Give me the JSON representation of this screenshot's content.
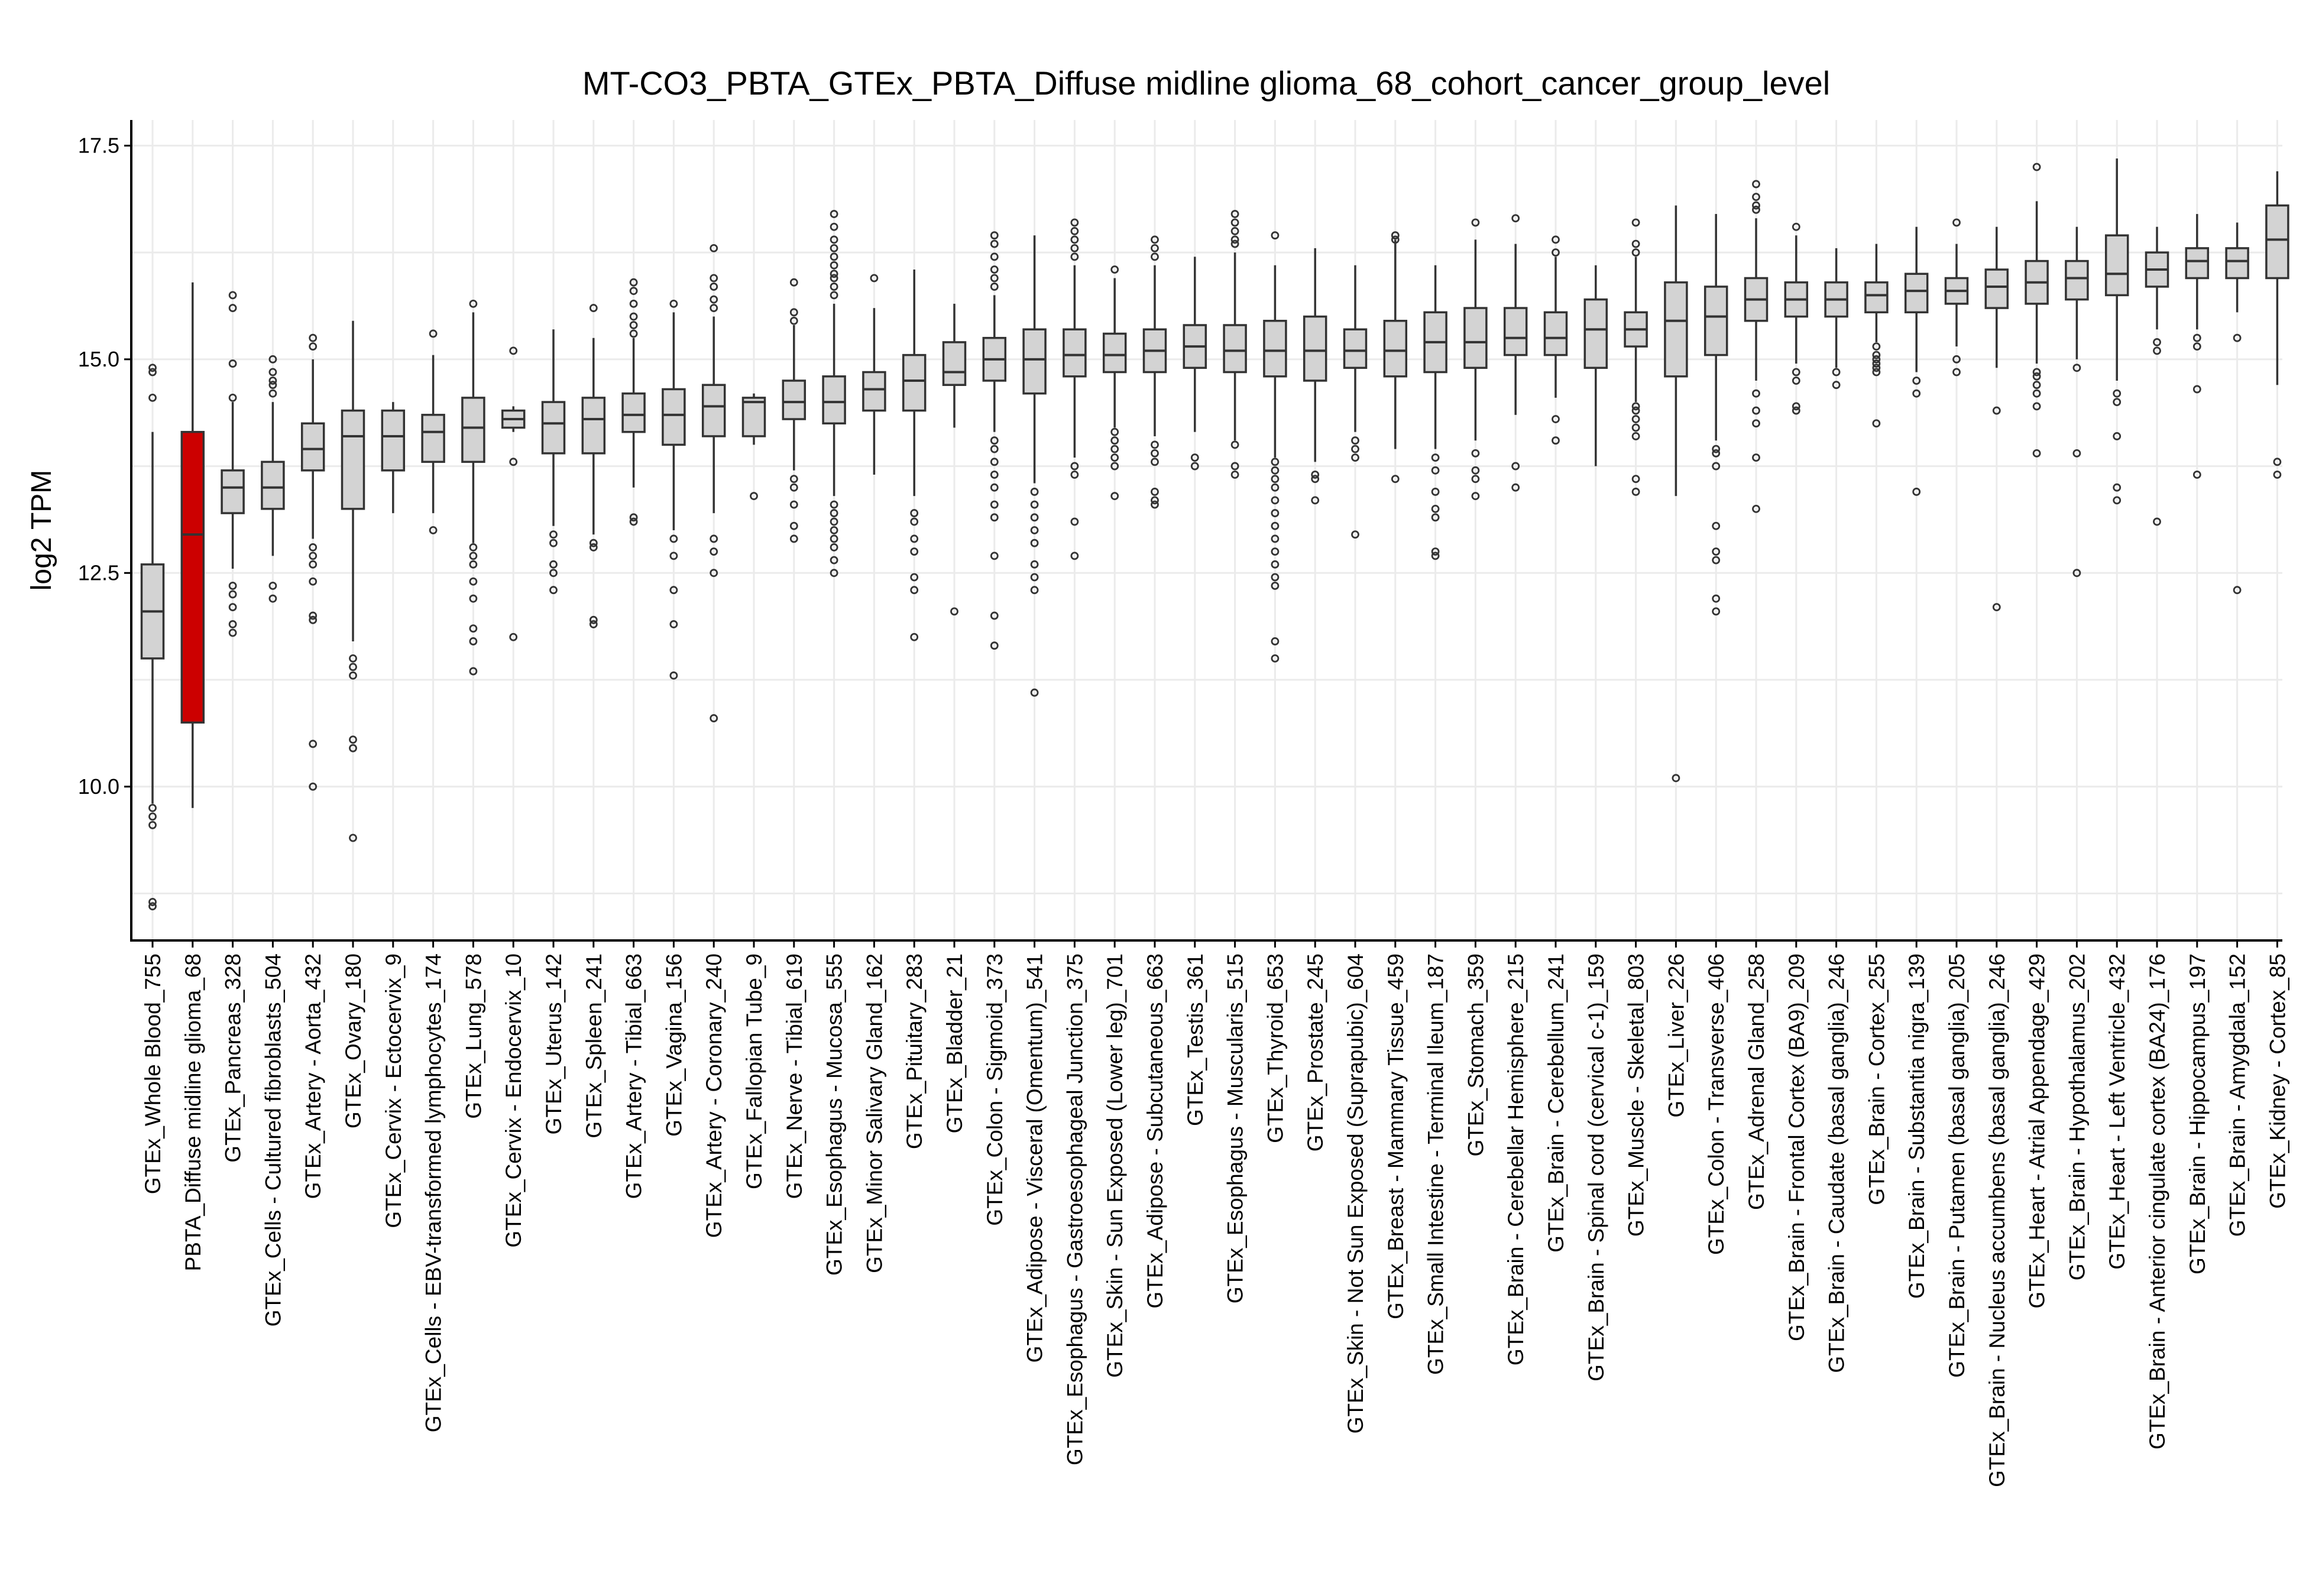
{
  "chart_data": {
    "type": "box",
    "title": "MT-CO3_PBTA_GTEx_PBTA_Diffuse midline glioma_68_cohort_cancer_group_level",
    "xlabel": "",
    "ylabel": "log2 TPM",
    "ylim": [
      8.2,
      17.8
    ],
    "yticks": [
      "10.0",
      "12.5",
      "15.0",
      "17.5"
    ],
    "grid": true,
    "legend": "none",
    "colors": {
      "default_fill": "#d3d3d3",
      "highlight_fill": "#cc0000",
      "line": "#333333"
    },
    "groups": [
      {
        "label": "GTEx_Whole Blood_755",
        "q1": 11.5,
        "median": 12.05,
        "q3": 12.6,
        "whisker_low": 9.8,
        "whisker_high": 14.15,
        "outliers": [
          14.9,
          14.85,
          14.55,
          9.75,
          9.65,
          9.55,
          8.65,
          8.6
        ],
        "highlight": false
      },
      {
        "label": "PBTA_Diffuse midline glioma_68",
        "q1": 10.75,
        "median": 12.95,
        "q3": 14.15,
        "whisker_low": 9.75,
        "whisker_high": 15.9,
        "outliers": [],
        "highlight": true
      },
      {
        "label": "GTEx_Pancreas_328",
        "q1": 13.2,
        "median": 13.5,
        "q3": 13.7,
        "whisker_low": 12.55,
        "whisker_high": 14.5,
        "outliers": [
          15.75,
          15.6,
          14.95,
          14.55,
          12.35,
          12.25,
          12.1,
          11.9,
          11.8
        ],
        "highlight": false
      },
      {
        "label": "GTEx_Cells - Cultured fibroblasts_504",
        "q1": 13.25,
        "median": 13.5,
        "q3": 13.8,
        "whisker_low": 12.7,
        "whisker_high": 14.5,
        "outliers": [
          15.0,
          14.85,
          14.75,
          14.7,
          14.6,
          12.35,
          12.2
        ],
        "highlight": false
      },
      {
        "label": "GTEx_Artery - Aorta_432",
        "q1": 13.7,
        "median": 13.95,
        "q3": 14.25,
        "whisker_low": 12.9,
        "whisker_high": 15.0,
        "outliers": [
          15.25,
          15.15,
          12.8,
          12.7,
          12.6,
          12.4,
          12.0,
          11.95,
          10.5,
          10.0
        ],
        "highlight": false
      },
      {
        "label": "GTEx_Ovary_180",
        "q1": 13.25,
        "median": 14.1,
        "q3": 14.4,
        "whisker_low": 11.7,
        "whisker_high": 15.45,
        "outliers": [
          11.5,
          11.4,
          11.3,
          10.55,
          10.45,
          9.4
        ],
        "highlight": false
      },
      {
        "label": "GTEx_Cervix - Ectocervix_9",
        "q1": 13.7,
        "median": 14.1,
        "q3": 14.4,
        "whisker_low": 13.2,
        "whisker_high": 14.5,
        "outliers": [],
        "highlight": false
      },
      {
        "label": "GTEx_Cells - EBV-transformed lymphocytes_174",
        "q1": 13.8,
        "median": 14.15,
        "q3": 14.35,
        "whisker_low": 13.2,
        "whisker_high": 15.05,
        "outliers": [
          15.3,
          13.0
        ],
        "highlight": false
      },
      {
        "label": "GTEx_Lung_578",
        "q1": 13.8,
        "median": 14.2,
        "q3": 14.55,
        "whisker_low": 12.85,
        "whisker_high": 15.55,
        "outliers": [
          15.65,
          12.8,
          12.7,
          12.6,
          12.4,
          12.2,
          11.85,
          11.7,
          11.35
        ],
        "highlight": false
      },
      {
        "label": "GTEx_Cervix - Endocervix_10",
        "q1": 14.2,
        "median": 14.3,
        "q3": 14.4,
        "whisker_low": 14.15,
        "whisker_high": 14.45,
        "outliers": [
          15.1,
          13.8,
          11.75
        ],
        "highlight": false
      },
      {
        "label": "GTEx_Uterus_142",
        "q1": 13.9,
        "median": 14.25,
        "q3": 14.5,
        "whisker_low": 13.05,
        "whisker_high": 15.35,
        "outliers": [
          12.95,
          12.85,
          12.6,
          12.5,
          12.3
        ],
        "highlight": false
      },
      {
        "label": "GTEx_Spleen_241",
        "q1": 13.9,
        "median": 14.3,
        "q3": 14.55,
        "whisker_low": 12.95,
        "whisker_high": 15.25,
        "outliers": [
          15.6,
          12.85,
          12.8,
          11.95,
          11.9
        ],
        "highlight": false
      },
      {
        "label": "GTEx_Artery - Tibial_663",
        "q1": 14.15,
        "median": 14.35,
        "q3": 14.6,
        "whisker_low": 13.5,
        "whisker_high": 15.25,
        "outliers": [
          15.9,
          15.8,
          15.65,
          15.5,
          15.4,
          15.3,
          13.15,
          13.1
        ],
        "highlight": false
      },
      {
        "label": "GTEx_Vagina_156",
        "q1": 14.0,
        "median": 14.35,
        "q3": 14.65,
        "whisker_low": 13.0,
        "whisker_high": 15.55,
        "outliers": [
          15.65,
          12.9,
          12.7,
          12.3,
          11.9,
          11.3
        ],
        "highlight": false
      },
      {
        "label": "GTEx_Artery - Coronary_240",
        "q1": 14.1,
        "median": 14.45,
        "q3": 14.7,
        "whisker_low": 13.2,
        "whisker_high": 15.5,
        "outliers": [
          16.3,
          15.95,
          15.85,
          15.7,
          15.6,
          12.9,
          12.75,
          12.5,
          10.8
        ],
        "highlight": false
      },
      {
        "label": "GTEx_Fallopian Tube_9",
        "q1": 14.1,
        "median": 14.5,
        "q3": 14.55,
        "whisker_low": 14.0,
        "whisker_high": 14.6,
        "outliers": [
          13.4
        ],
        "highlight": false
      },
      {
        "label": "GTEx_Nerve - Tibial_619",
        "q1": 14.3,
        "median": 14.5,
        "q3": 14.75,
        "whisker_low": 13.7,
        "whisker_high": 15.4,
        "outliers": [
          15.9,
          15.55,
          15.45,
          13.6,
          13.5,
          13.3,
          13.05,
          12.9
        ],
        "highlight": false
      },
      {
        "label": "GTEx_Esophagus - Mucosa_555",
        "q1": 14.25,
        "median": 14.5,
        "q3": 14.8,
        "whisker_low": 13.4,
        "whisker_high": 15.65,
        "outliers": [
          16.7,
          16.55,
          16.4,
          16.3,
          16.2,
          16.1,
          16.0,
          15.95,
          15.85,
          15.75,
          13.3,
          13.2,
          13.1,
          13.0,
          12.9,
          12.8,
          12.65,
          12.5
        ],
        "highlight": false
      },
      {
        "label": "GTEx_Minor Salivary Gland_162",
        "q1": 14.4,
        "median": 14.65,
        "q3": 14.85,
        "whisker_low": 13.65,
        "whisker_high": 15.6,
        "outliers": [
          15.95
        ],
        "highlight": false
      },
      {
        "label": "GTEx_Pituitary_283",
        "q1": 14.4,
        "median": 14.75,
        "q3": 15.05,
        "whisker_low": 13.4,
        "whisker_high": 16.05,
        "outliers": [
          13.2,
          13.1,
          12.9,
          12.75,
          12.45,
          12.3,
          11.75
        ],
        "highlight": false
      },
      {
        "label": "GTEx_Bladder_21",
        "q1": 14.7,
        "median": 14.85,
        "q3": 15.2,
        "whisker_low": 14.2,
        "whisker_high": 15.65,
        "outliers": [
          12.05
        ],
        "highlight": false
      },
      {
        "label": "GTEx_Colon - Sigmoid_373",
        "q1": 14.75,
        "median": 15.0,
        "q3": 15.25,
        "whisker_low": 14.15,
        "whisker_high": 15.75,
        "outliers": [
          16.45,
          16.35,
          16.2,
          16.05,
          15.95,
          15.85,
          14.05,
          13.95,
          13.8,
          13.65,
          13.5,
          13.3,
          13.15,
          12.7,
          12.0,
          11.65
        ],
        "highlight": false
      },
      {
        "label": "GTEx_Adipose - Visceral (Omentum)_541",
        "q1": 14.6,
        "median": 15.0,
        "q3": 15.35,
        "whisker_low": 13.55,
        "whisker_high": 16.45,
        "outliers": [
          13.45,
          13.3,
          13.15,
          13.0,
          12.85,
          12.6,
          12.45,
          12.3,
          11.1
        ],
        "highlight": false
      },
      {
        "label": "GTEx_Esophagus - Gastroesophageal Junction_375",
        "q1": 14.8,
        "median": 15.05,
        "q3": 15.35,
        "whisker_low": 13.85,
        "whisker_high": 16.1,
        "outliers": [
          16.6,
          16.5,
          16.4,
          16.3,
          16.2,
          13.75,
          13.65,
          13.1,
          12.7
        ],
        "highlight": false
      },
      {
        "label": "GTEx_Skin - Sun Exposed (Lower leg)_701",
        "q1": 14.85,
        "median": 15.05,
        "q3": 15.3,
        "whisker_low": 14.2,
        "whisker_high": 15.95,
        "outliers": [
          16.05,
          14.15,
          14.05,
          13.95,
          13.85,
          13.75,
          13.4
        ],
        "highlight": false
      },
      {
        "label": "GTEx_Adipose - Subcutaneous_663",
        "q1": 14.85,
        "median": 15.1,
        "q3": 15.35,
        "whisker_low": 14.1,
        "whisker_high": 16.1,
        "outliers": [
          16.4,
          16.3,
          16.2,
          14.0,
          13.9,
          13.8,
          13.45,
          13.35,
          13.3
        ],
        "highlight": false
      },
      {
        "label": "GTEx_Testis_361",
        "q1": 14.9,
        "median": 15.15,
        "q3": 15.4,
        "whisker_low": 14.15,
        "whisker_high": 16.2,
        "outliers": [
          13.85,
          13.75
        ],
        "highlight": false
      },
      {
        "label": "GTEx_Esophagus - Muscularis_515",
        "q1": 14.85,
        "median": 15.1,
        "q3": 15.4,
        "whisker_low": 14.05,
        "whisker_high": 16.25,
        "outliers": [
          16.7,
          16.6,
          16.5,
          16.4,
          16.35,
          14.0,
          13.75,
          13.65
        ],
        "highlight": false
      },
      {
        "label": "GTEx_Thyroid_653",
        "q1": 14.8,
        "median": 15.1,
        "q3": 15.45,
        "whisker_low": 13.85,
        "whisker_high": 16.1,
        "outliers": [
          16.45,
          13.8,
          13.7,
          13.6,
          13.5,
          13.35,
          13.2,
          13.05,
          12.9,
          12.75,
          12.6,
          12.45,
          12.35,
          11.7,
          11.5
        ],
        "highlight": false
      },
      {
        "label": "GTEx_Prostate_245",
        "q1": 14.75,
        "median": 15.1,
        "q3": 15.5,
        "whisker_low": 13.8,
        "whisker_high": 16.3,
        "outliers": [
          13.65,
          13.6,
          13.35
        ],
        "highlight": false
      },
      {
        "label": "GTEx_Skin - Not Sun Exposed (Suprapubic)_604",
        "q1": 14.9,
        "median": 15.1,
        "q3": 15.35,
        "whisker_low": 14.15,
        "whisker_high": 16.1,
        "outliers": [
          14.05,
          13.95,
          13.85,
          12.95
        ],
        "highlight": false
      },
      {
        "label": "GTEx_Breast - Mammary Tissue_459",
        "q1": 14.8,
        "median": 15.1,
        "q3": 15.45,
        "whisker_low": 13.95,
        "whisker_high": 16.4,
        "outliers": [
          16.45,
          16.4,
          13.6
        ],
        "highlight": false
      },
      {
        "label": "GTEx_Small Intestine - Terminal Ileum_187",
        "q1": 14.85,
        "median": 15.2,
        "q3": 15.55,
        "whisker_low": 13.95,
        "whisker_high": 16.1,
        "outliers": [
          13.85,
          13.7,
          13.45,
          13.25,
          13.15,
          12.75,
          12.7
        ],
        "highlight": false
      },
      {
        "label": "GTEx_Stomach_359",
        "q1": 14.9,
        "median": 15.2,
        "q3": 15.6,
        "whisker_low": 14.05,
        "whisker_high": 16.4,
        "outliers": [
          16.6,
          13.9,
          13.7,
          13.6,
          13.4
        ],
        "highlight": false
      },
      {
        "label": "GTEx_Brain - Cerebellar Hemisphere_215",
        "q1": 15.05,
        "median": 15.25,
        "q3": 15.6,
        "whisker_low": 14.35,
        "whisker_high": 16.35,
        "outliers": [
          16.65,
          13.75,
          13.5
        ],
        "highlight": false
      },
      {
        "label": "GTEx_Brain - Cerebellum_241",
        "q1": 15.05,
        "median": 15.25,
        "q3": 15.55,
        "whisker_low": 14.55,
        "whisker_high": 16.2,
        "outliers": [
          16.4,
          16.25,
          14.3,
          14.05
        ],
        "highlight": false
      },
      {
        "label": "GTEx_Brain - Spinal cord (cervical c-1)_159",
        "q1": 14.9,
        "median": 15.35,
        "q3": 15.7,
        "whisker_low": 13.75,
        "whisker_high": 16.1,
        "outliers": [],
        "highlight": false
      },
      {
        "label": "GTEx_Muscle - Skeletal_803",
        "q1": 15.15,
        "median": 15.35,
        "q3": 15.55,
        "whisker_low": 14.5,
        "whisker_high": 16.2,
        "outliers": [
          16.6,
          16.35,
          16.25,
          14.45,
          14.4,
          14.3,
          14.2,
          14.1,
          13.6,
          13.45
        ],
        "highlight": false
      },
      {
        "label": "GTEx_Liver_226",
        "q1": 14.8,
        "median": 15.45,
        "q3": 15.9,
        "whisker_low": 13.4,
        "whisker_high": 16.8,
        "outliers": [
          10.1
        ],
        "highlight": false
      },
      {
        "label": "GTEx_Colon - Transverse_406",
        "q1": 15.05,
        "median": 15.5,
        "q3": 15.85,
        "whisker_low": 14.05,
        "whisker_high": 16.7,
        "outliers": [
          13.95,
          13.9,
          13.75,
          13.05,
          12.75,
          12.65,
          12.2,
          12.05
        ],
        "highlight": false
      },
      {
        "label": "GTEx_Adrenal Gland_258",
        "q1": 15.45,
        "median": 15.7,
        "q3": 15.95,
        "whisker_low": 14.75,
        "whisker_high": 16.65,
        "outliers": [
          17.05,
          16.9,
          16.8,
          16.75,
          14.6,
          14.4,
          14.25,
          13.85,
          13.25
        ],
        "highlight": false
      },
      {
        "label": "GTEx_Brain - Frontal Cortex (BA9)_209",
        "q1": 15.5,
        "median": 15.7,
        "q3": 15.9,
        "whisker_low": 14.95,
        "whisker_high": 16.45,
        "outliers": [
          16.55,
          14.85,
          14.75,
          14.45,
          14.4
        ],
        "highlight": false
      },
      {
        "label": "GTEx_Brain - Caudate (basal ganglia)_246",
        "q1": 15.5,
        "median": 15.7,
        "q3": 15.9,
        "whisker_low": 14.9,
        "whisker_high": 16.3,
        "outliers": [
          14.85,
          14.7
        ],
        "highlight": false
      },
      {
        "label": "GTEx_Brain - Cortex_255",
        "q1": 15.55,
        "median": 15.75,
        "q3": 15.9,
        "whisker_low": 15.2,
        "whisker_high": 16.35,
        "outliers": [
          15.15,
          15.05,
          15.0,
          14.95,
          14.9,
          14.85,
          14.25
        ],
        "highlight": false
      },
      {
        "label": "GTEx_Brain - Substantia nigra_139",
        "q1": 15.55,
        "median": 15.8,
        "q3": 16.0,
        "whisker_low": 14.85,
        "whisker_high": 16.55,
        "outliers": [
          14.75,
          14.6,
          13.45
        ],
        "highlight": false
      },
      {
        "label": "GTEx_Brain - Putamen (basal ganglia)_205",
        "q1": 15.65,
        "median": 15.8,
        "q3": 15.95,
        "whisker_low": 15.15,
        "whisker_high": 16.35,
        "outliers": [
          16.6,
          15.0,
          14.85
        ],
        "highlight": false
      },
      {
        "label": "GTEx_Brain - Nucleus accumbens (basal ganglia)_246",
        "q1": 15.6,
        "median": 15.85,
        "q3": 16.05,
        "whisker_low": 14.9,
        "whisker_high": 16.55,
        "outliers": [
          14.4,
          12.1
        ],
        "highlight": false
      },
      {
        "label": "GTEx_Heart - Atrial Appendage_429",
        "q1": 15.65,
        "median": 15.9,
        "q3": 16.15,
        "whisker_low": 14.95,
        "whisker_high": 16.85,
        "outliers": [
          17.25,
          14.85,
          14.8,
          14.7,
          14.6,
          14.45,
          13.9
        ],
        "highlight": false
      },
      {
        "label": "GTEx_Brain - Hypothalamus_202",
        "q1": 15.7,
        "median": 15.95,
        "q3": 16.15,
        "whisker_low": 15.0,
        "whisker_high": 16.55,
        "outliers": [
          14.9,
          13.9,
          12.5
        ],
        "highlight": false
      },
      {
        "label": "GTEx_Heart - Left Ventricle_432",
        "q1": 15.75,
        "median": 16.0,
        "q3": 16.45,
        "whisker_low": 14.75,
        "whisker_high": 17.35,
        "outliers": [
          14.6,
          14.5,
          14.1,
          13.5,
          13.35
        ],
        "highlight": false
      },
      {
        "label": "GTEx_Brain - Anterior cingulate cortex (BA24)_176",
        "q1": 15.85,
        "median": 16.05,
        "q3": 16.25,
        "whisker_low": 15.35,
        "whisker_high": 16.55,
        "outliers": [
          15.2,
          15.1,
          13.1
        ],
        "highlight": false
      },
      {
        "label": "GTEx_Brain - Hippocampus_197",
        "q1": 15.95,
        "median": 16.15,
        "q3": 16.3,
        "whisker_low": 15.35,
        "whisker_high": 16.7,
        "outliers": [
          15.25,
          15.15,
          14.65,
          13.65
        ],
        "highlight": false
      },
      {
        "label": "GTEx_Brain - Amygdala_152",
        "q1": 15.95,
        "median": 16.15,
        "q3": 16.3,
        "whisker_low": 15.55,
        "whisker_high": 16.6,
        "outliers": [
          15.25,
          12.3
        ],
        "highlight": false
      },
      {
        "label": "GTEx_Kidney - Cortex_85",
        "q1": 15.95,
        "median": 16.4,
        "q3": 16.8,
        "whisker_low": 14.7,
        "whisker_high": 17.2,
        "outliers": [
          13.8,
          13.65
        ],
        "highlight": false
      }
    ]
  }
}
